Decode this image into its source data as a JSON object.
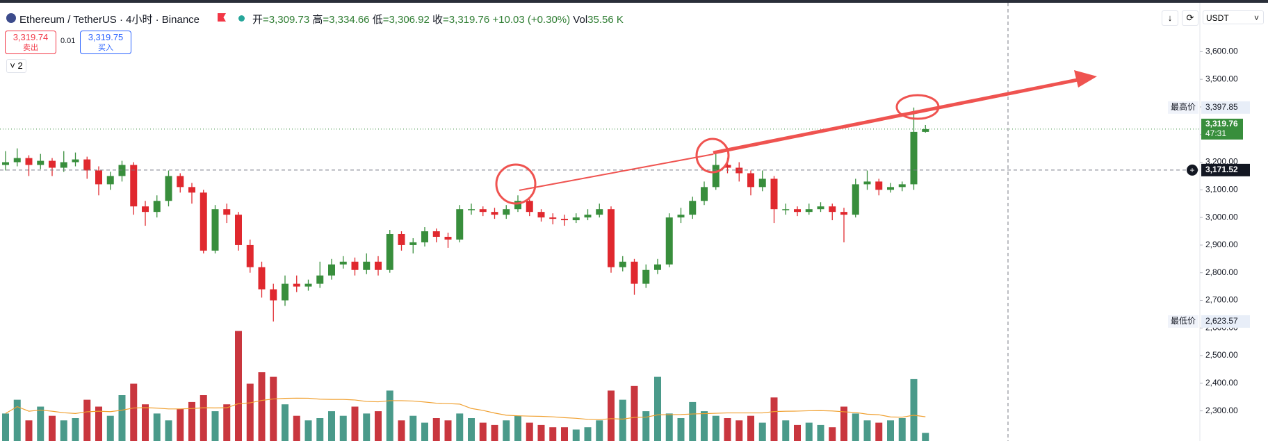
{
  "header": {
    "symbol": "Ethereum / TetherUS · 4小时 · Binance",
    "open_label": "开",
    "open": "=3,309.73",
    "high_label": "高",
    "high": "=3,334.66",
    "low_label": "低",
    "low": "=3,306.92",
    "close_label": "收",
    "close": "=3,319.76",
    "change": "+10.03 (+0.30%)",
    "vol_label": "Vol",
    "vol": "35.56 K"
  },
  "trade": {
    "sell_price": "3,319.74",
    "sell": "卖出",
    "size": "0.01",
    "buy_price": "3,319.75",
    "buy": "买入",
    "indicators": "2",
    "currency": "USDT"
  },
  "chart_data": {
    "type": "candlestick",
    "ylim": [
      2191,
      3787
    ],
    "yticks": [
      {
        "value": 2300,
        "label": "2,300.00"
      },
      {
        "value": 2400,
        "label": "2,400.00"
      },
      {
        "value": 2500,
        "label": "2,500.00"
      },
      {
        "value": 2600,
        "label": "2,600.00"
      },
      {
        "value": 2700,
        "label": "2,700.00"
      },
      {
        "value": 2800,
        "label": "2,800.00"
      },
      {
        "value": 2900,
        "label": "2,900.00"
      },
      {
        "value": 3000,
        "label": "3,000.00"
      },
      {
        "value": 3100,
        "label": "3,100.00"
      },
      {
        "value": 3200,
        "label": "3,200.00"
      },
      {
        "value": 3300,
        "label": "3,300.00"
      },
      {
        "value": 3400,
        "label": "3,400.00"
      },
      {
        "value": 3500,
        "label": "3,500.00"
      },
      {
        "value": 3600,
        "label": "3,600.00"
      }
    ],
    "up_color": "#388e3c",
    "down_color": "#e0282e",
    "vol_up_color": "#4a9a8a",
    "vol_down_color": "#c9363e",
    "open": [
      3190,
      3200,
      3215,
      3190,
      3205,
      3180,
      3200,
      3210,
      3170,
      3120,
      3150,
      3190,
      3040,
      3020,
      3060,
      3150,
      3110,
      3090,
      2880,
      3030,
      3010,
      2900,
      2820,
      2740,
      2700,
      2760,
      2750,
      2760,
      2790,
      2830,
      2840,
      2810,
      2840,
      2810,
      2940,
      2900,
      2910,
      2950,
      2930,
      2920,
      3030,
      3030,
      3020,
      3010,
      3030,
      3060,
      3020,
      3000,
      2995,
      2990,
      3000,
      3010,
      3030,
      2820,
      2840,
      2760,
      2810,
      2830,
      3000,
      3010,
      3060,
      3110,
      3190,
      3180,
      3160,
      3110,
      3140,
      3030,
      3030,
      3020,
      3030,
      3040,
      3020,
      3010,
      3120,
      3130,
      3100,
      3110,
      3120,
      3309.73
    ],
    "high": [
      3240,
      3250,
      3225,
      3230,
      3215,
      3240,
      3235,
      3220,
      3185,
      3165,
      3205,
      3200,
      3060,
      3080,
      3170,
      3160,
      3125,
      3100,
      3045,
      3050,
      3020,
      2920,
      2840,
      2760,
      2790,
      2790,
      2775,
      2840,
      2850,
      2860,
      2855,
      2870,
      2860,
      2955,
      2950,
      2925,
      2965,
      2960,
      2945,
      3045,
      3050,
      3040,
      3035,
      3045,
      3080,
      3065,
      3030,
      3015,
      3010,
      3015,
      3030,
      3050,
      3040,
      2860,
      2850,
      2830,
      2850,
      3015,
      3035,
      3075,
      3130,
      3230,
      3215,
      3200,
      3170,
      3170,
      3150,
      3050,
      3040,
      3050,
      3055,
      3050,
      3035,
      3140,
      3170,
      3140,
      3125,
      3130,
      3397.85,
      3334.66
    ],
    "low": [
      3170,
      3185,
      3150,
      3175,
      3150,
      3165,
      3185,
      3140,
      3080,
      3100,
      3130,
      3010,
      2970,
      3000,
      3040,
      3090,
      3050,
      2870,
      2870,
      2980,
      2880,
      2800,
      2710,
      2623.57,
      2680,
      2730,
      2735,
      2745,
      2775,
      2815,
      2790,
      2795,
      2790,
      2800,
      2880,
      2870,
      2895,
      2910,
      2890,
      2910,
      3010,
      3005,
      2995,
      2995,
      3020,
      3005,
      2985,
      2975,
      2970,
      2980,
      2990,
      3000,
      2800,
      2805,
      2720,
      2745,
      2795,
      2820,
      2980,
      2995,
      3045,
      3100,
      3160,
      3130,
      3080,
      3095,
      2980,
      3010,
      3005,
      3010,
      3020,
      2990,
      2910,
      3000,
      3100,
      3080,
      3090,
      3095,
      3100,
      3306.92
    ],
    "close": [
      3200,
      3215,
      3190,
      3205,
      3180,
      3200,
      3210,
      3170,
      3120,
      3150,
      3190,
      3040,
      3020,
      3060,
      3150,
      3110,
      3090,
      2880,
      3030,
      3010,
      2900,
      2820,
      2740,
      2700,
      2760,
      2750,
      2760,
      2790,
      2830,
      2840,
      2810,
      2840,
      2810,
      2940,
      2900,
      2910,
      2950,
      2930,
      2920,
      3030,
      3030,
      3020,
      3010,
      3030,
      3060,
      3020,
      3000,
      2995,
      2990,
      3000,
      3010,
      3030,
      2820,
      2840,
      2760,
      2810,
      2830,
      3000,
      3010,
      3060,
      3110,
      3190,
      3180,
      3160,
      3110,
      3140,
      3030,
      3030,
      3020,
      3030,
      3040,
      3020,
      3010,
      3120,
      3130,
      3100,
      3110,
      3120,
      3309.73,
      3319.76
    ],
    "volume": [
      120,
      180,
      90,
      150,
      110,
      90,
      100,
      180,
      150,
      110,
      200,
      250,
      160,
      120,
      90,
      140,
      170,
      200,
      130,
      160,
      480,
      250,
      300,
      280,
      160,
      110,
      90,
      100,
      130,
      110,
      150,
      120,
      130,
      220,
      90,
      110,
      80,
      100,
      90,
      120,
      100,
      80,
      70,
      90,
      110,
      80,
      70,
      60,
      60,
      50,
      60,
      90,
      220,
      180,
      240,
      130,
      280,
      120,
      100,
      170,
      130,
      110,
      100,
      90,
      110,
      80,
      190,
      90,
      70,
      80,
      70,
      60,
      150,
      120,
      90,
      80,
      90,
      100,
      270,
      35.56
    ],
    "price_tags": [
      {
        "name": "最高价",
        "value": 3397.85,
        "label": "3,397.85"
      },
      {
        "name": "最低价",
        "value": 2623.57,
        "label": "2,623.57"
      }
    ],
    "last_price": {
      "value": 3319.76,
      "label": "3,319.76",
      "countdown": "47:31"
    },
    "crosshair": {
      "value": 3171.52,
      "label": "3,171.52"
    }
  }
}
